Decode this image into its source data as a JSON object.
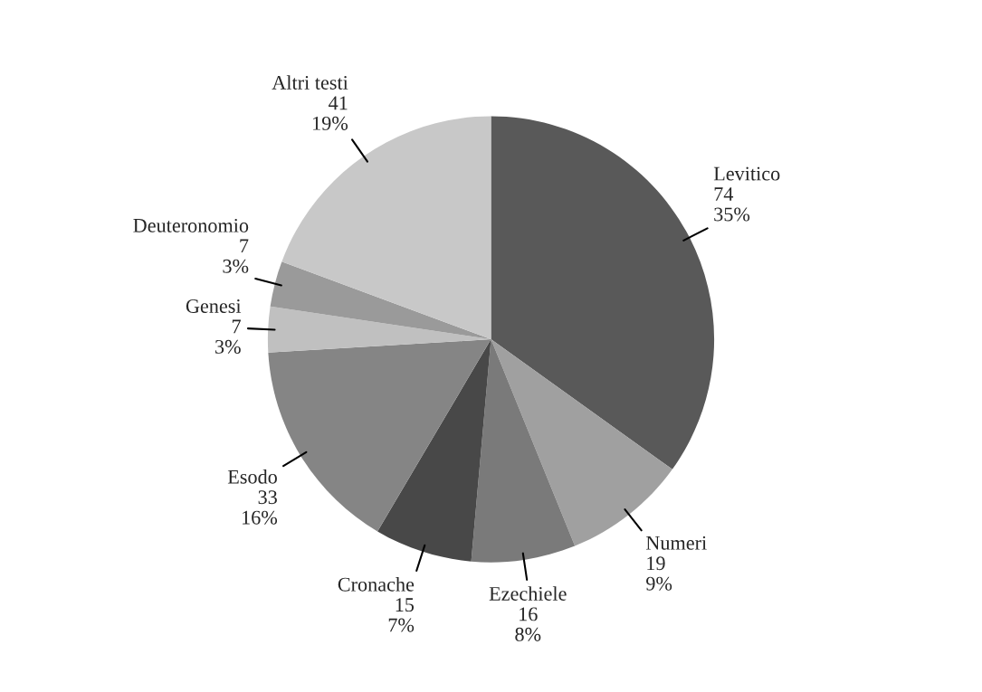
{
  "chart_data": {
    "type": "pie",
    "categories": [
      "Levitico",
      "Numeri",
      "Ezechiele",
      "Cronache",
      "Esodo",
      "Genesi",
      "Deuteronomio",
      "Altri testi"
    ],
    "values": [
      74,
      19,
      16,
      15,
      33,
      7,
      7,
      41
    ],
    "colors": [
      "#595959",
      "#a0a0a0",
      "#7a7a7a",
      "#484848",
      "#858585",
      "#c0c0c0",
      "#9a9a9a",
      "#c8c8c8"
    ],
    "value_labels": [
      "74\n35%",
      "19\n9%",
      "16\n8%",
      "15\n7%",
      "33\n16%",
      "7\n3%",
      "7\n3%",
      "41\n19%"
    ],
    "legend": false
  }
}
